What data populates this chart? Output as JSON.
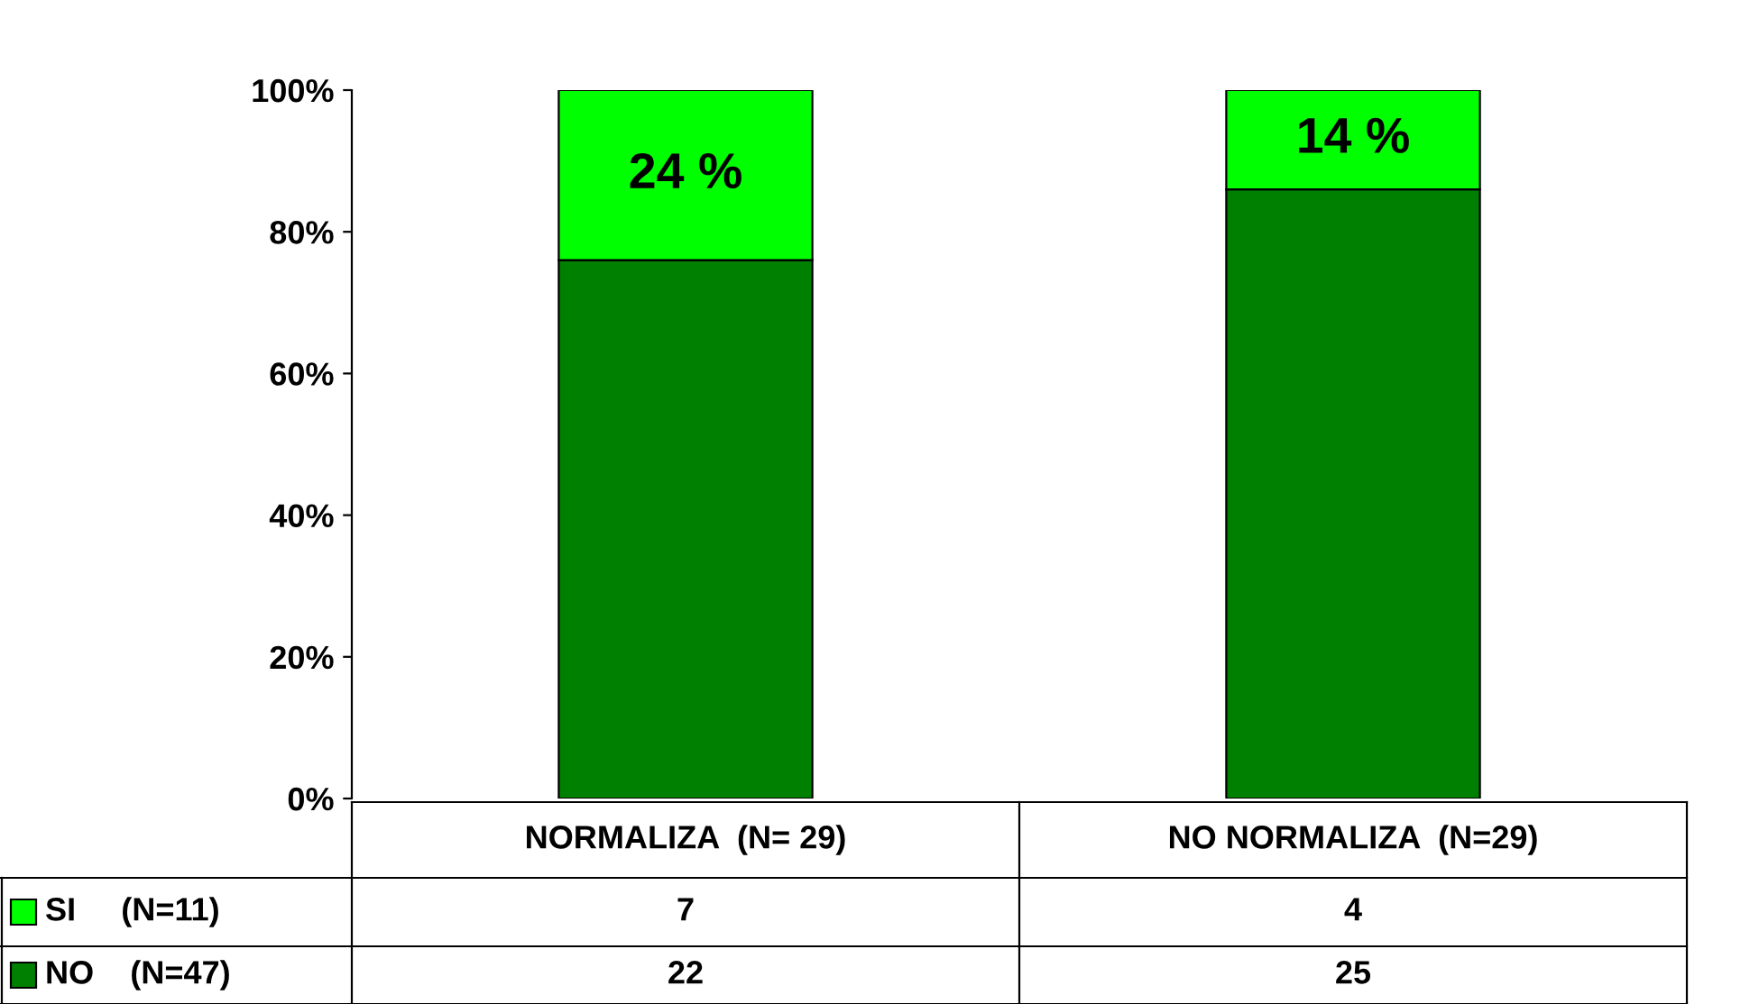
{
  "chart_data": {
    "type": "bar",
    "stacked": true,
    "categories": [
      "NORMALIZA  (N= 29)",
      "NO NORMALIZA  (N=29)"
    ],
    "series": [
      {
        "name": "NO    (N=47)",
        "color": "#008000",
        "values": [
          76,
          86
        ]
      },
      {
        "name": "SI     (N=11)",
        "color": "#00ff00",
        "values": [
          24,
          14
        ],
        "value_labels": [
          "24 %",
          "14 %"
        ]
      }
    ],
    "ylim": [
      0,
      100
    ],
    "yticks": [
      {
        "value": 0,
        "label": "0%"
      },
      {
        "value": 20,
        "label": "20%"
      },
      {
        "value": 40,
        "label": "40%"
      },
      {
        "value": 60,
        "label": "60%"
      },
      {
        "value": 80,
        "label": "80%"
      },
      {
        "value": 100,
        "label": "100%"
      }
    ],
    "annotations": [
      "7",
      "4",
      "22",
      "25"
    ],
    "legend": "bottom left"
  }
}
